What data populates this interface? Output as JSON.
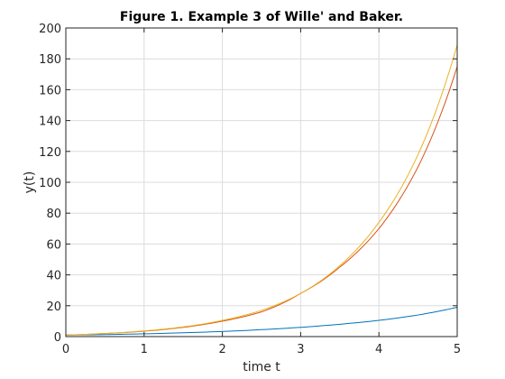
{
  "chart_data": {
    "type": "line",
    "title": "Figure 1. Example 3 of Wille' and Baker.",
    "xlabel": "time t",
    "ylabel": "y(t)",
    "xlim": [
      0,
      5
    ],
    "ylim": [
      0,
      200
    ],
    "xticks": [
      0,
      1,
      2,
      3,
      4,
      5
    ],
    "yticks": [
      0,
      20,
      40,
      60,
      80,
      100,
      120,
      140,
      160,
      180,
      200
    ],
    "grid": true,
    "legend": "none",
    "series": [
      {
        "color": "#0072BD",
        "x": [
          0,
          0.5,
          1,
          1.5,
          2,
          2.5,
          3,
          3.5,
          4,
          4.5,
          5
        ],
        "y": [
          1,
          1.3,
          1.8,
          2.5,
          3.3,
          4.5,
          6,
          8,
          10.5,
          14,
          19
        ]
      },
      {
        "color": "#D95319",
        "x": [
          0,
          0.5,
          1,
          1.5,
          2,
          2.5,
          3,
          3.5,
          4,
          4.5,
          5
        ],
        "y": [
          1,
          2,
          3.5,
          6,
          10,
          16,
          28,
          45,
          70,
          110,
          175
        ]
      },
      {
        "color": "#EDB120",
        "x": [
          0,
          0.5,
          1,
          1.5,
          2,
          2.5,
          3,
          3.5,
          4,
          4.5,
          5
        ],
        "y": [
          1,
          2,
          3.7,
          6.3,
          10.5,
          17,
          28,
          46,
          74,
          118,
          189
        ]
      }
    ]
  }
}
